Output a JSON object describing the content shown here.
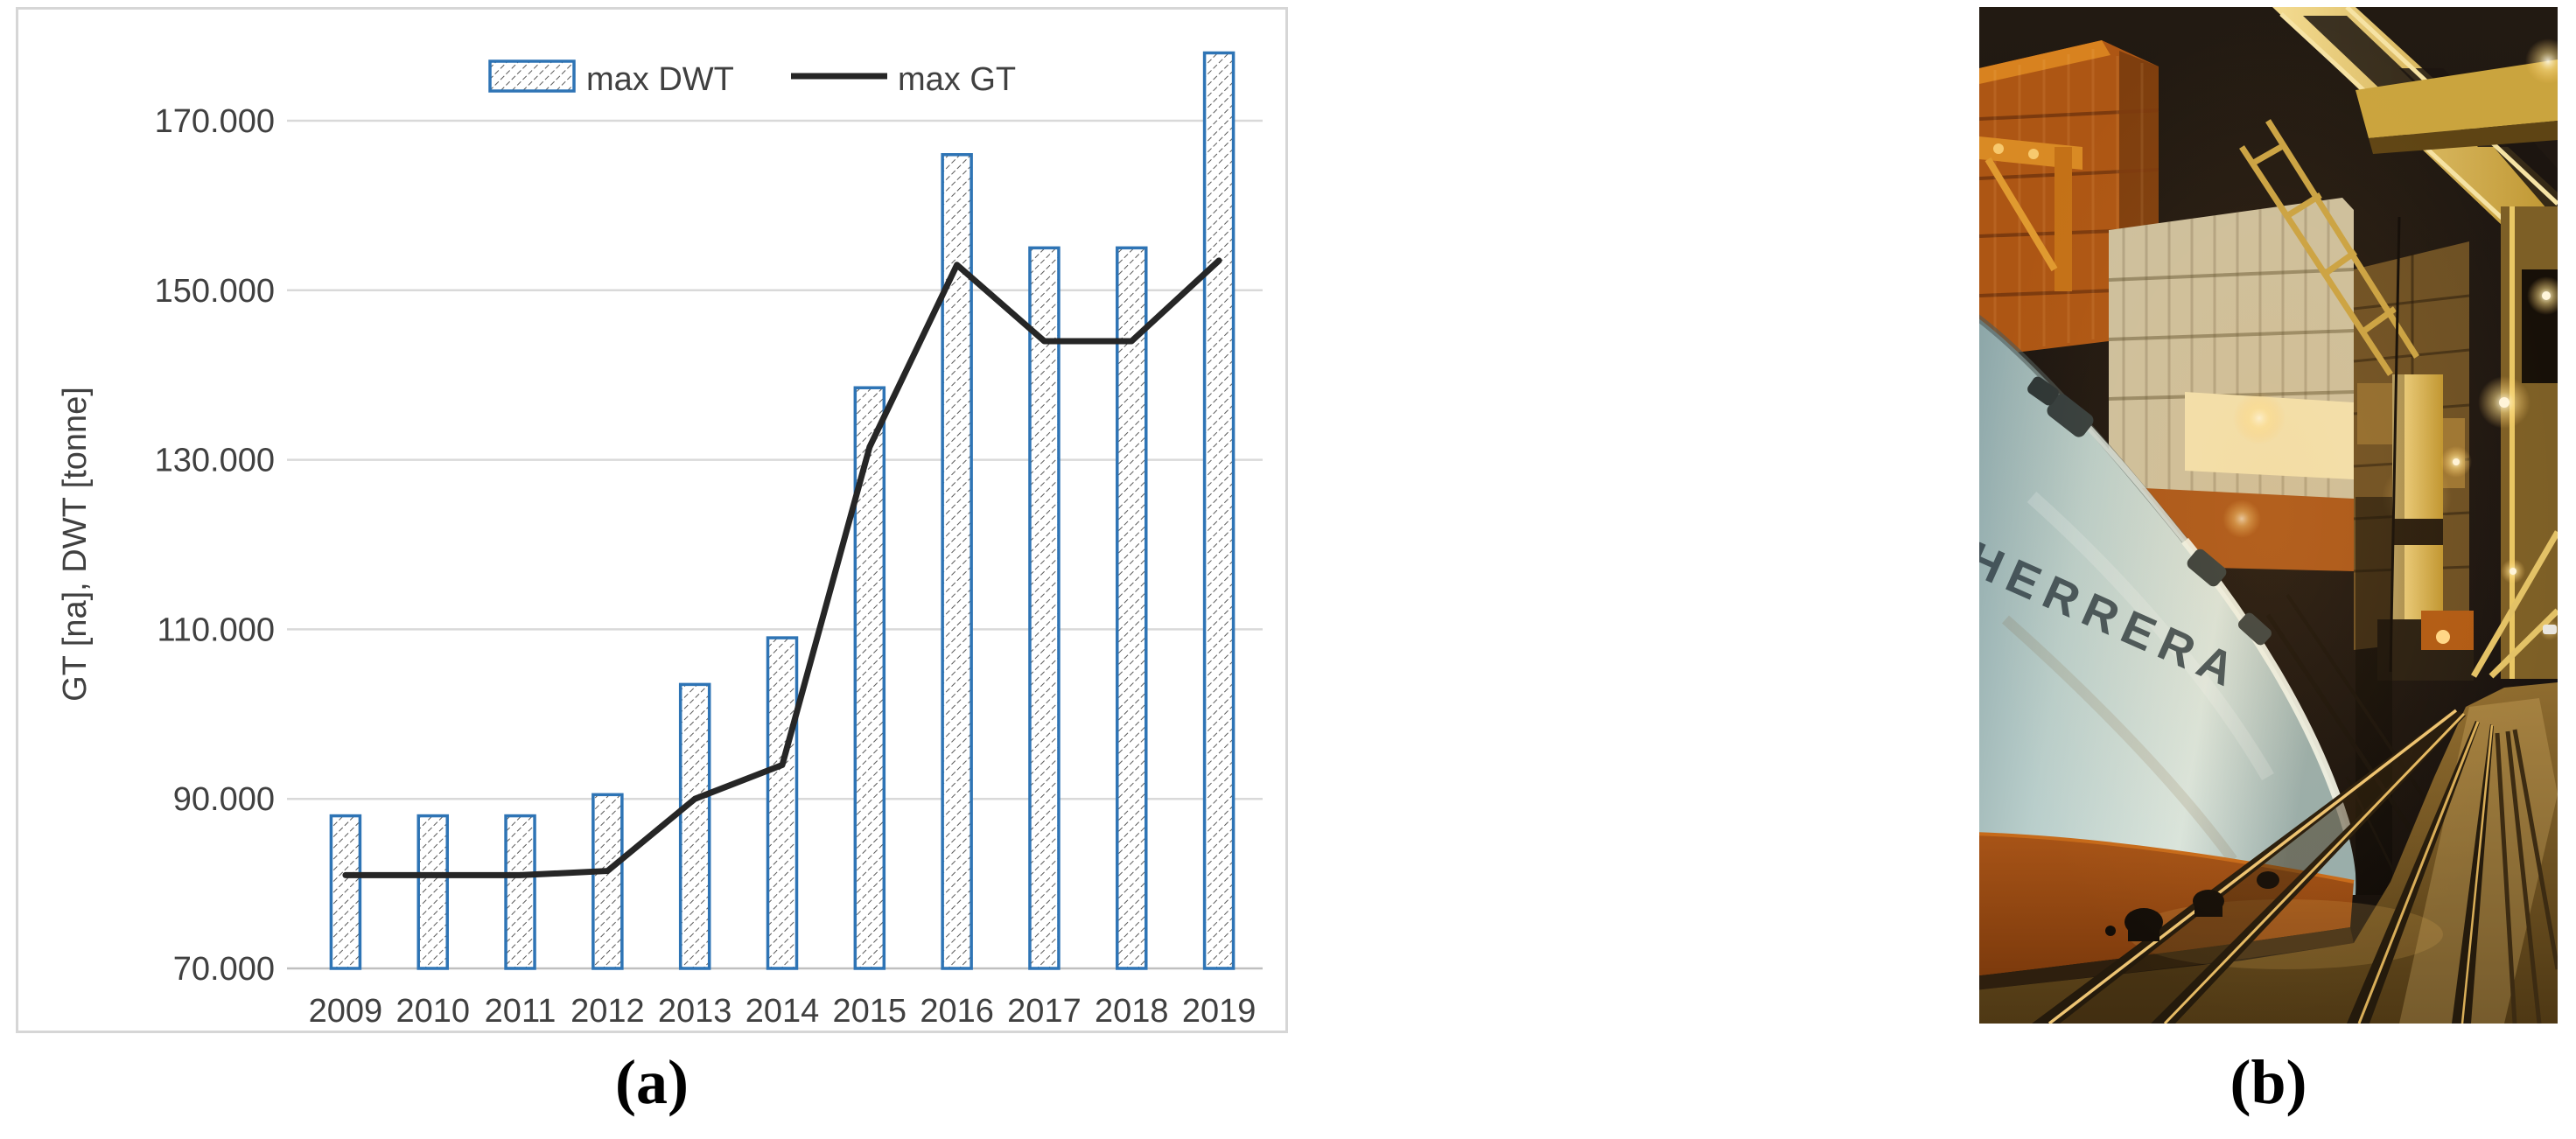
{
  "figure": {
    "caption_a": "(a)",
    "caption_b": "(b)"
  },
  "chart_data": {
    "type": "bar+line",
    "title": "",
    "xlabel": "",
    "ylabel": "GT [na], DWT [tonne]",
    "categories": [
      "2009",
      "2010",
      "2011",
      "2012",
      "2013",
      "2014",
      "2015",
      "2016",
      "2017",
      "2018",
      "2019"
    ],
    "series": [
      {
        "name": "max DWT",
        "chart_type": "bar",
        "values": [
          88000,
          88000,
          88000,
          90500,
          103500,
          109000,
          138500,
          166000,
          155000,
          155000,
          178000
        ]
      },
      {
        "name": "max GT",
        "chart_type": "line",
        "values": [
          81000,
          81000,
          81000,
          81500,
          90000,
          94000,
          131500,
          153000,
          144000,
          144000,
          153500
        ]
      }
    ],
    "ylim": [
      70000,
      181500
    ],
    "yticks": {
      "values": [
        70000,
        90000,
        110000,
        130000,
        150000,
        170000
      ],
      "labels": [
        "70.000",
        "90.000",
        "110.000",
        "130.000",
        "150.000",
        "170.000"
      ]
    },
    "grid": true,
    "legend": {
      "items": [
        "max DWT",
        "max GT"
      ],
      "position": "top-center"
    },
    "colors": {
      "bar_border": "#2E74B5",
      "bar_hatch": "#595959",
      "line": "#262626",
      "gridline": "#D9D9D9",
      "axis_line": "#BFBFBF",
      "axis_text": "#404040",
      "chart_border": "#D6D6D6"
    }
  },
  "photo": {
    "ship_hull_text": "HERRERA",
    "description": "Night photo of a container ship bow with pale blue hull and orange boot-top moored at a container terminal; stacked containers, yellow gantry cranes, mooring lines and crane rails on the wet quay."
  }
}
